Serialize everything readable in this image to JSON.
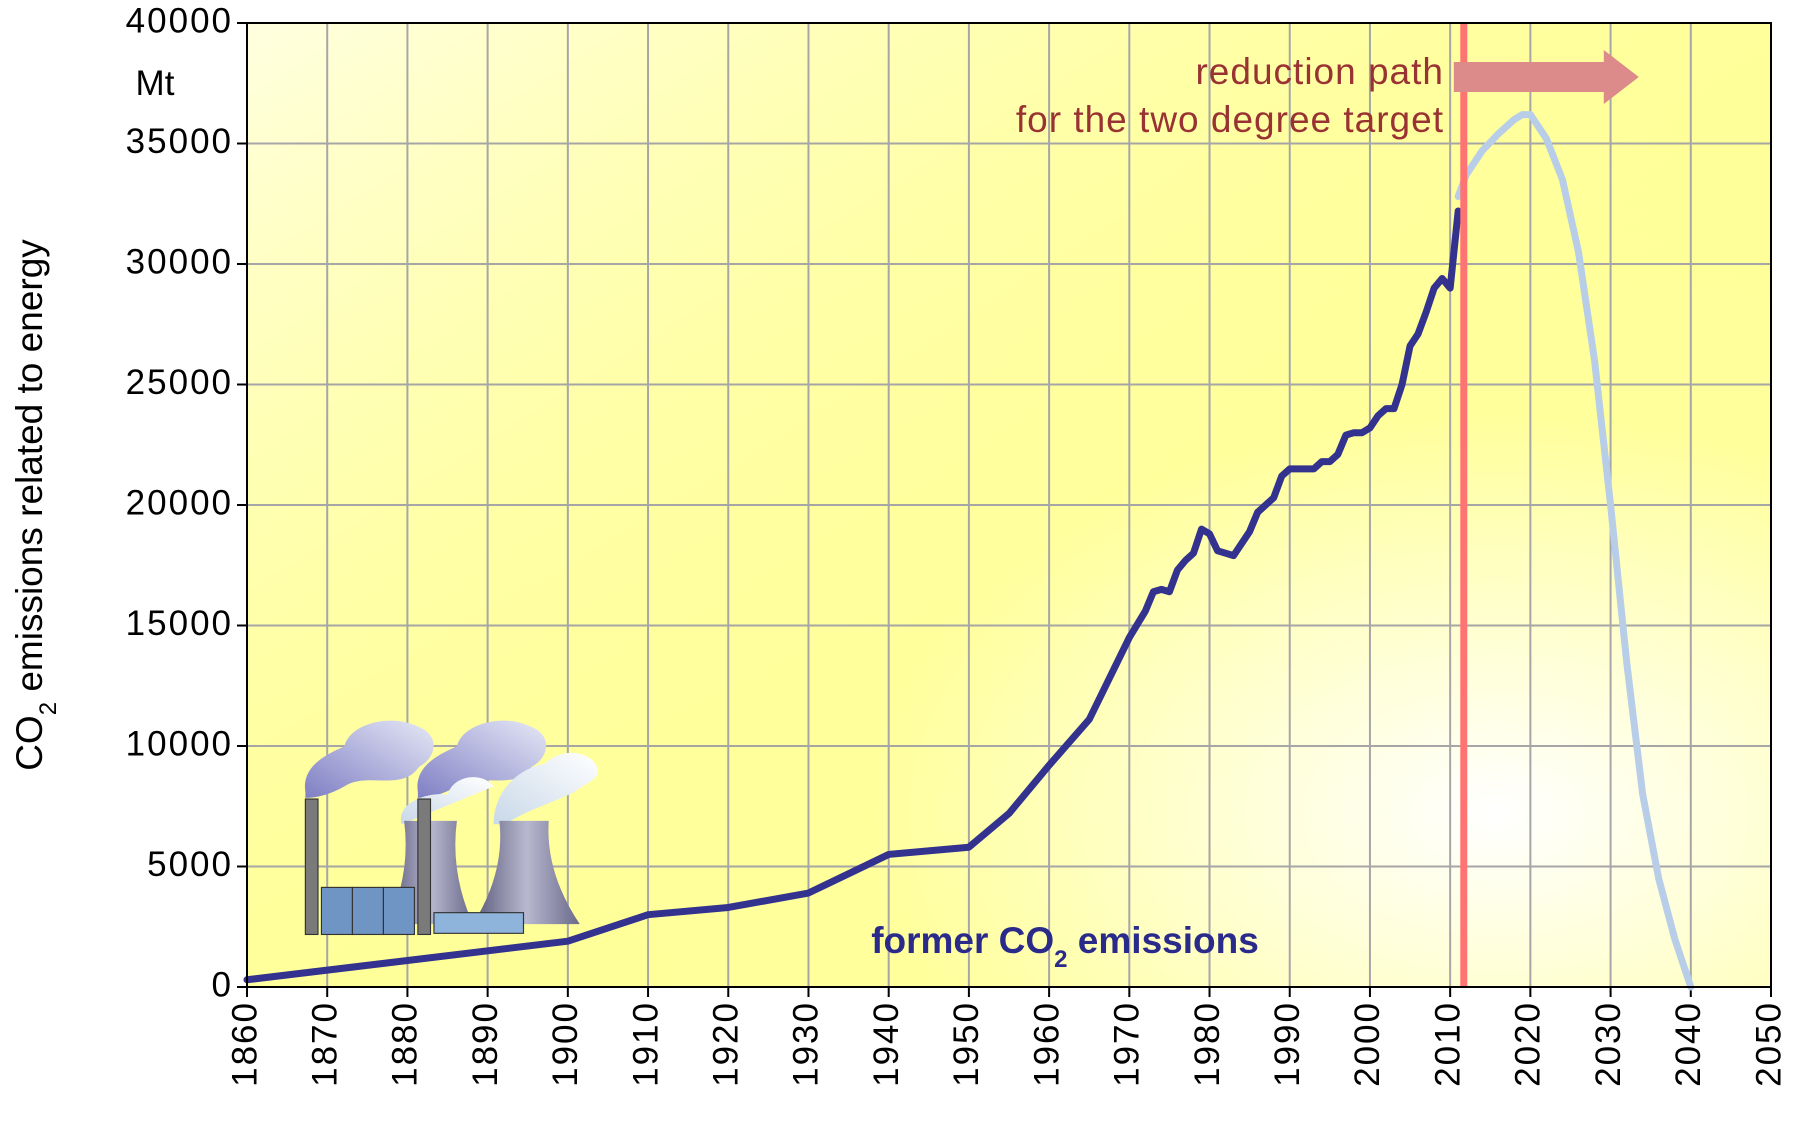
{
  "chart_data": {
    "type": "line",
    "y_label_parts": [
      "CO",
      "2",
      " emissions related to energy"
    ],
    "y_unit": "Mt",
    "annotations": {
      "reduction": [
        "reduction path",
        "for the two degree target"
      ],
      "former_parts": [
        "former CO",
        "2",
        " emissions"
      ]
    },
    "xlim": [
      1860,
      2050
    ],
    "xticks": [
      1860,
      1870,
      1880,
      1890,
      1900,
      1910,
      1920,
      1930,
      1940,
      1950,
      1960,
      1970,
      1980,
      1990,
      2000,
      2010,
      2020,
      2030,
      2040,
      2050
    ],
    "ylim": [
      0,
      40000
    ],
    "yticks": [
      0,
      5000,
      10000,
      15000,
      20000,
      25000,
      30000,
      35000,
      40000
    ],
    "grid": true,
    "reference_line": {
      "x": 2011.7,
      "color": "#ff7373"
    },
    "series": [
      {
        "color": "#33338f",
        "x": [
          1860,
          1900,
          1910,
          1920,
          1930,
          1940,
          1950,
          1955,
          1960,
          1965,
          1970,
          1972,
          1973,
          1974,
          1975,
          1976,
          1977,
          1978,
          1979,
          1980,
          1981,
          1982,
          1983,
          1985,
          1986,
          1988,
          1989,
          1990,
          1991,
          1993,
          1994,
          1995,
          1996,
          1997,
          1998,
          1999,
          2000,
          2001,
          2002,
          2003,
          2004,
          2005,
          2006,
          2007,
          2008,
          2009,
          2010,
          2011
        ],
        "values": [
          300,
          1900,
          3000,
          3300,
          3900,
          5500,
          5800,
          7200,
          9200,
          11100,
          14500,
          15600,
          16400,
          16500,
          16400,
          17300,
          17700,
          18000,
          19000,
          18800,
          18100,
          18000,
          17900,
          18900,
          19700,
          20300,
          21200,
          21500,
          21500,
          21500,
          21800,
          21800,
          22100,
          22900,
          23000,
          23000,
          23200,
          23700,
          24000,
          24000,
          25000,
          26600,
          27100,
          28000,
          29000,
          29400,
          29000,
          32200
        ]
      },
      {
        "color": "#b8cde8",
        "x": [
          2011,
          2012,
          2014,
          2016,
          2018,
          2019,
          2020,
          2022,
          2024,
          2026,
          2028,
          2030,
          2032,
          2034,
          2036,
          2038,
          2040
        ],
        "values": [
          32800,
          33700,
          34700,
          35400,
          36000,
          36200,
          36200,
          35200,
          33500,
          30500,
          26000,
          20000,
          13500,
          8000,
          4500,
          2000,
          0
        ]
      }
    ]
  }
}
